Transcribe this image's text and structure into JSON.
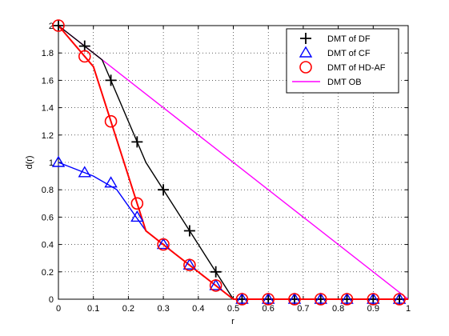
{
  "chart_data": {
    "type": "line",
    "xlabel": "r",
    "ylabel": "d(r)",
    "xlim": [
      0,
      1
    ],
    "ylim": [
      0,
      2
    ],
    "grid": true,
    "legend_position": "top-right",
    "x_ticks": [
      "0",
      "0.1",
      "0.2",
      "0.3",
      "0.4",
      "0.5",
      "0.6",
      "0.7",
      "0.8",
      "0.9",
      "1"
    ],
    "y_ticks": [
      "0",
      "0.2",
      "0.4",
      "0.6",
      "0.8",
      "1",
      "1.2",
      "1.4",
      "1.6",
      "1.8",
      "2"
    ],
    "series": [
      {
        "name": "DMT of DF",
        "color": "#000000",
        "marker": "plus",
        "line": [
          [
            0,
            2
          ],
          [
            0.125,
            1.75
          ],
          [
            0.25,
            1.0
          ],
          [
            0.375,
            0.5
          ],
          [
            0.5,
            0
          ],
          [
            1,
            0
          ]
        ],
        "markers": [
          [
            0,
            2
          ],
          [
            0.075,
            1.85
          ],
          [
            0.15,
            1.6
          ],
          [
            0.225,
            1.15
          ],
          [
            0.3,
            0.8
          ],
          [
            0.375,
            0.5
          ],
          [
            0.45,
            0.2
          ],
          [
            0.525,
            0
          ],
          [
            0.6,
            0
          ],
          [
            0.675,
            0
          ],
          [
            0.75,
            0
          ],
          [
            0.825,
            0
          ],
          [
            0.9,
            0
          ],
          [
            0.975,
            0
          ]
        ]
      },
      {
        "name": "DMT of CF",
        "color": "#0000ff",
        "marker": "triangle",
        "line": [
          [
            0,
            1.0
          ],
          [
            0.1,
            0.9
          ],
          [
            0.167,
            0.8
          ],
          [
            0.25,
            0.5
          ],
          [
            0.333,
            0.333
          ],
          [
            0.5,
            0
          ],
          [
            1,
            0
          ]
        ],
        "markers": [
          [
            0,
            1.0
          ],
          [
            0.075,
            0.925
          ],
          [
            0.15,
            0.85
          ],
          [
            0.225,
            0.6
          ],
          [
            0.3,
            0.4
          ],
          [
            0.375,
            0.25
          ],
          [
            0.45,
            0.1
          ],
          [
            0.525,
            0
          ],
          [
            0.6,
            0
          ],
          [
            0.675,
            0
          ],
          [
            0.75,
            0
          ],
          [
            0.825,
            0
          ],
          [
            0.9,
            0
          ],
          [
            0.975,
            0
          ]
        ]
      },
      {
        "name": "DMT of HD-AF",
        "color": "#ff0000",
        "marker": "circle",
        "line": [
          [
            0,
            2
          ],
          [
            0.1,
            1.7
          ],
          [
            0.25,
            0.5
          ],
          [
            0.333,
            0.333
          ],
          [
            0.5,
            0
          ],
          [
            1,
            0
          ]
        ],
        "markers": [
          [
            0,
            2
          ],
          [
            0.075,
            1.775
          ],
          [
            0.15,
            1.3
          ],
          [
            0.225,
            0.7
          ],
          [
            0.3,
            0.4
          ],
          [
            0.375,
            0.25
          ],
          [
            0.45,
            0.1
          ],
          [
            0.525,
            0
          ],
          [
            0.6,
            0
          ],
          [
            0.675,
            0
          ],
          [
            0.75,
            0
          ],
          [
            0.825,
            0
          ],
          [
            0.9,
            0
          ],
          [
            0.975,
            0
          ]
        ]
      },
      {
        "name": "DMT OB",
        "color": "#ff00ff",
        "marker": "none",
        "line": [
          [
            0,
            2
          ],
          [
            1,
            0
          ]
        ],
        "markers": []
      }
    ]
  }
}
